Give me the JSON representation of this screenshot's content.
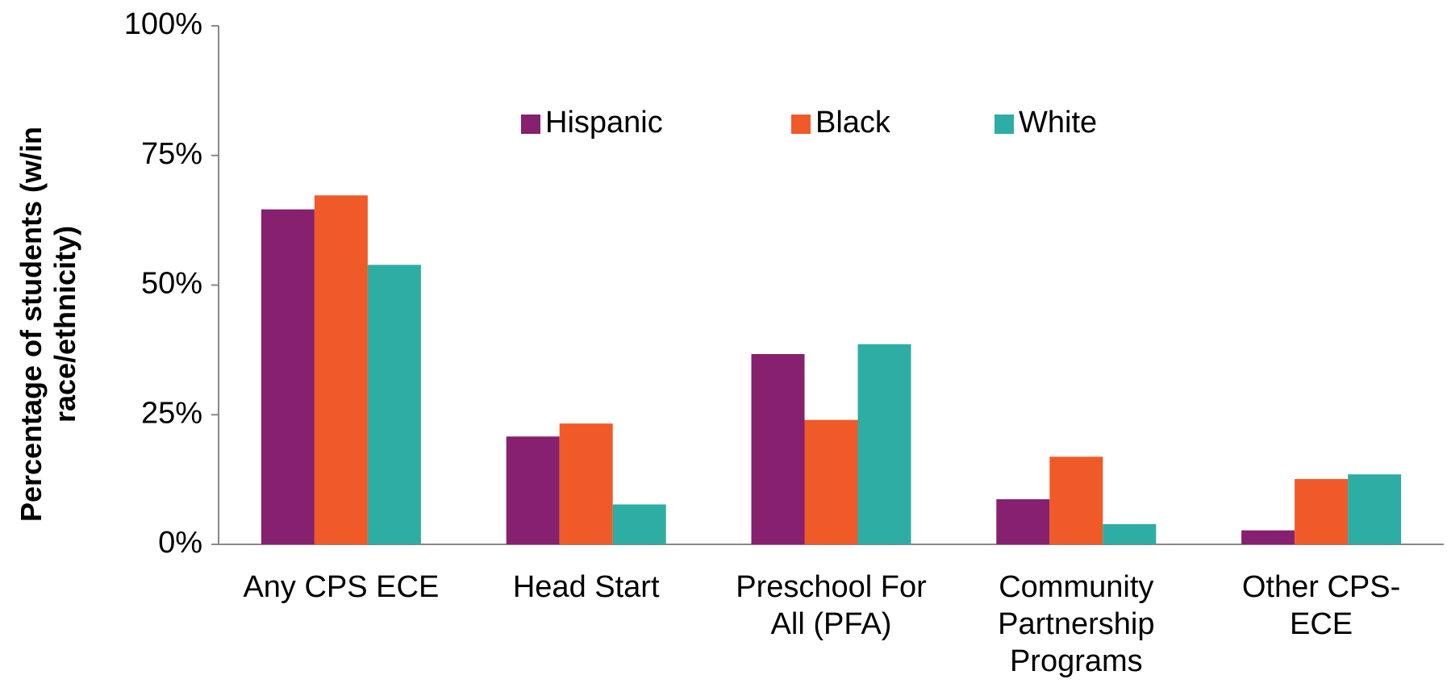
{
  "chart_data": {
    "type": "bar",
    "y_label": "Percentage of students (w/in\nrace/ethnicity)",
    "categories": [
      "Any CPS ECE",
      "Head Start",
      "Preschool For\nAll (PFA)",
      "Community\nPartnership\nPrograms",
      "Other CPS-\nECE"
    ],
    "series": [
      {
        "name": "Hispanic",
        "color": "#86206f",
        "values": [
          64.6,
          20.8,
          36.7,
          8.7,
          2.7
        ]
      },
      {
        "name": "Black",
        "color": "#f05a28",
        "values": [
          67.3,
          23.3,
          24.0,
          16.9,
          12.6
        ]
      },
      {
        "name": "White",
        "color": "#2dada3",
        "values": [
          53.9,
          7.7,
          38.6,
          3.9,
          13.5
        ]
      }
    ],
    "ylim": [
      0,
      100
    ],
    "yticks": [
      {
        "value": 0,
        "label": "0%"
      },
      {
        "value": 25,
        "label": "25%"
      },
      {
        "value": 50,
        "label": "50%"
      },
      {
        "value": 75,
        "label": "75%"
      },
      {
        "value": 100,
        "label": "100%"
      }
    ],
    "grid": false,
    "legend": "top"
  }
}
